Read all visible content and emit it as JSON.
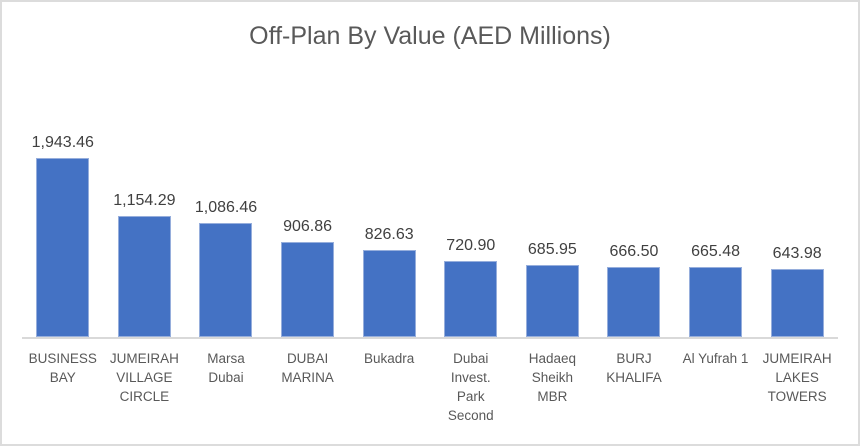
{
  "chart_data": {
    "type": "bar",
    "title": "Off-Plan By Value (AED Millions)",
    "categories": [
      "BUSINESS BAY",
      "JUMEIRAH VILLAGE CIRCLE",
      "Marsa Dubai",
      "DUBAI MARINA",
      "Bukadra",
      "Dubai Invest. Park Second",
      "Hadaeq Sheikh MBR",
      "BURJ KHALIFA",
      "Al Yufrah 1",
      "JUMEIRAH LAKES TOWERS"
    ],
    "category_label_lines": [
      "BUSINESS\nBAY",
      "JUMEIRAH\nVILLAGE\nCIRCLE",
      "Marsa\nDubai",
      "DUBAI\nMARINA",
      "Bukadra",
      "Dubai\nInvest.\nPark\nSecond",
      "Hadaeq\nSheikh\nMBR",
      "BURJ\nKHALIFA",
      "Al Yufrah 1",
      "JUMEIRAH\nLAKES\nTOWERS"
    ],
    "values": [
      1943.46,
      1154.29,
      1086.46,
      906.86,
      826.63,
      720.9,
      685.95,
      666.5,
      665.48,
      643.98
    ],
    "data_labels": [
      "1,943.46",
      "1,154.29",
      "1,086.46",
      "906.86",
      "826.63",
      "720.90",
      "685.95",
      "666.50",
      "665.48",
      "643.98"
    ],
    "xlabel": "",
    "ylabel": "",
    "y_axis_visible": false,
    "x_axis_visible": true,
    "gridlines": false,
    "legend": "none",
    "bar_color": "#4472C4",
    "bar_border_color": "#96AEDC",
    "axis_line_color": "#D9D9D9",
    "title_color": "#595959",
    "data_label_color": "#404040",
    "category_label_color": "#595959"
  }
}
